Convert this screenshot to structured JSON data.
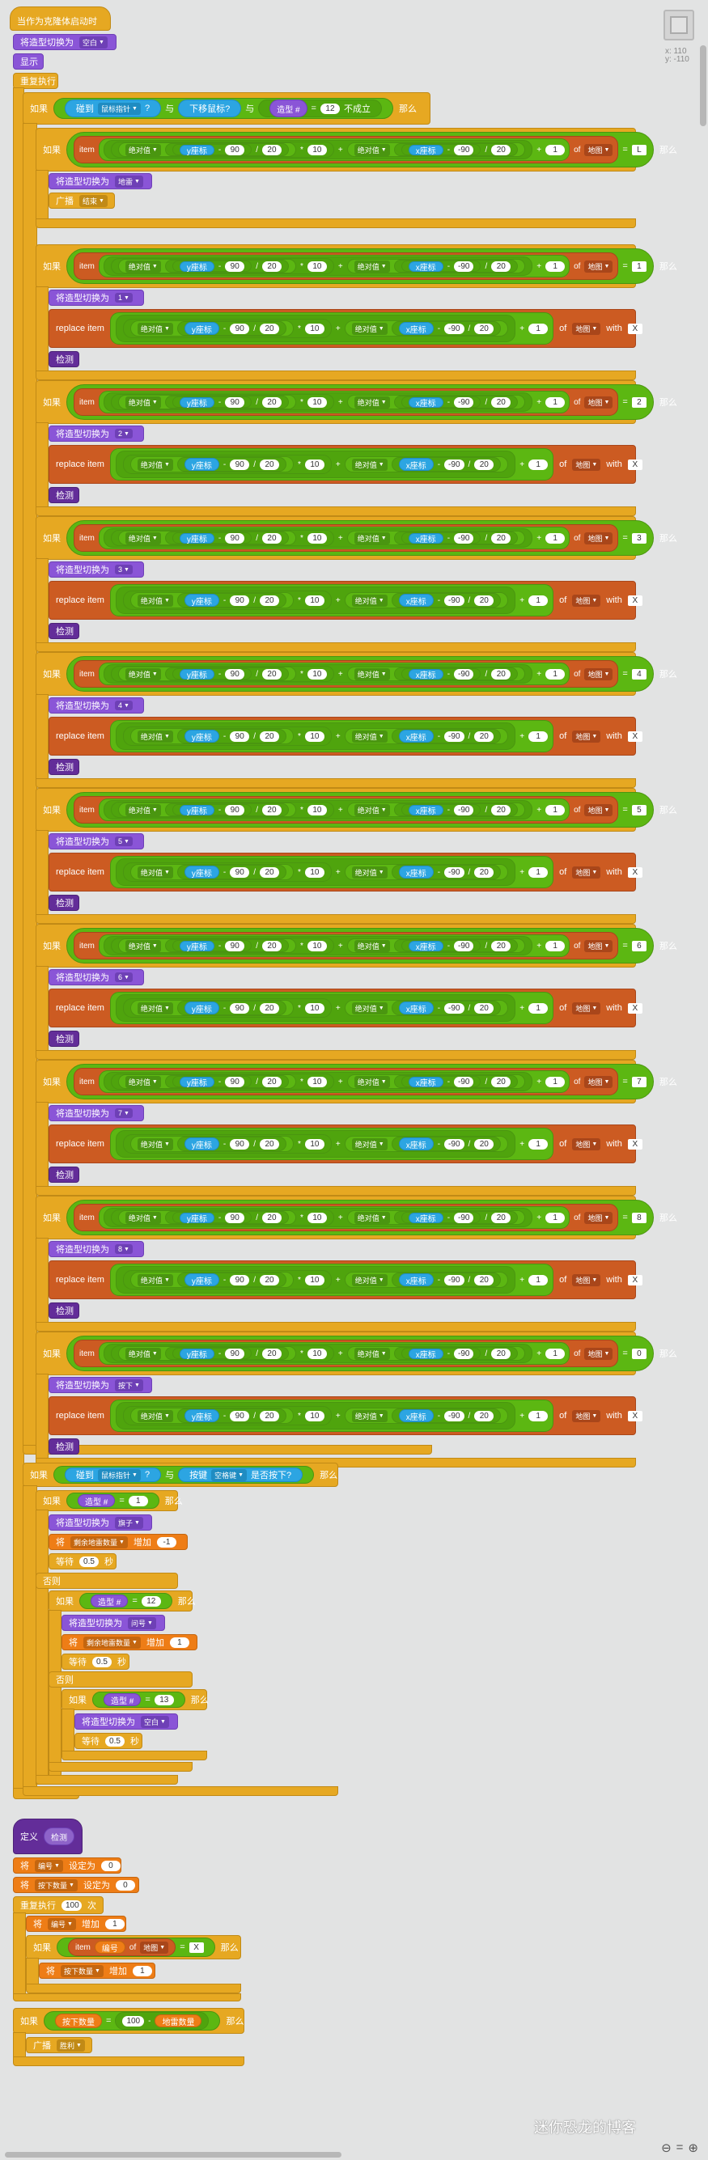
{
  "colors": {
    "events": "#e6a822",
    "looks": "#8a55d7",
    "data": "#ee7d16",
    "list": "#cc5b22",
    "operators": "#5cb712",
    "sensing": "#2ca5e2",
    "more": "#632d99",
    "background": "#e2e3e3"
  },
  "stage": {
    "x_label": "x: 110",
    "y_label": "y: -110"
  },
  "script1": {
    "hat": "当作为克隆体启动时",
    "switch_blank": [
      "将造型切换为",
      "空白"
    ],
    "show": "显示",
    "forever": "重复执行",
    "if": "如果",
    "then": "那么",
    "else": "否则",
    "touching": "碰到",
    "mouse_pointer": "鼠标指针",
    "question": "?",
    "and": "与",
    "mouse_down": "下移鼠标?",
    "costume_num": "造型 #",
    "eq": "=",
    "val12": "12",
    "not_true": "不成立",
    "item": "item",
    "abs": "绝对值",
    "y_pos": "y座标",
    "x_pos": "x座标",
    "minus": "-",
    "plus": "+",
    "times": "*",
    "div": "/",
    "n90": "90",
    "neg90": "-90",
    "n20": "20",
    "n10": "10",
    "n1": "1",
    "of": "of",
    "list_map": "地图",
    "mine_letter": "L",
    "switch_to": "将造型切换为",
    "mine_costume": "地雷",
    "broadcast": "广播",
    "end_msg": "结束",
    "replace": "replace item",
    "with": "with",
    "x_mark": "X",
    "check": "检测",
    "digits": [
      "1",
      "2",
      "3",
      "4",
      "5",
      "6",
      "7",
      "8",
      "0"
    ],
    "last_costume": "按下",
    "key_pressed": "按键",
    "space": "空格键",
    "is_pressed": "是否按下?",
    "flag_costume": "旗子",
    "set_var": "将",
    "mines_left": "剩余地雷数量",
    "change_by": "增加",
    "neg1": "-1",
    "wait": "等待",
    "wait_val": "0.5",
    "seconds": "秒",
    "question_costume": "问号",
    "val13": "13",
    "blank": "空白"
  },
  "script2": {
    "define": "定义",
    "proc_name": "检测",
    "set": "将",
    "num_var": "编号",
    "set_to": "设定为",
    "zero": "0",
    "pressed_var": "按下数量",
    "repeat": "重复执行",
    "times_val": "100",
    "times": "次",
    "change": "增加",
    "one": "1",
    "item": "item",
    "of": "of",
    "map": "地图",
    "eq": "=",
    "x": "X",
    "then": "那么",
    "if": "如果",
    "minus": "-",
    "mine_count": "地雷数量",
    "broadcast": "广播",
    "win": "胜利"
  },
  "watermark": "迷你恐龙的博客"
}
